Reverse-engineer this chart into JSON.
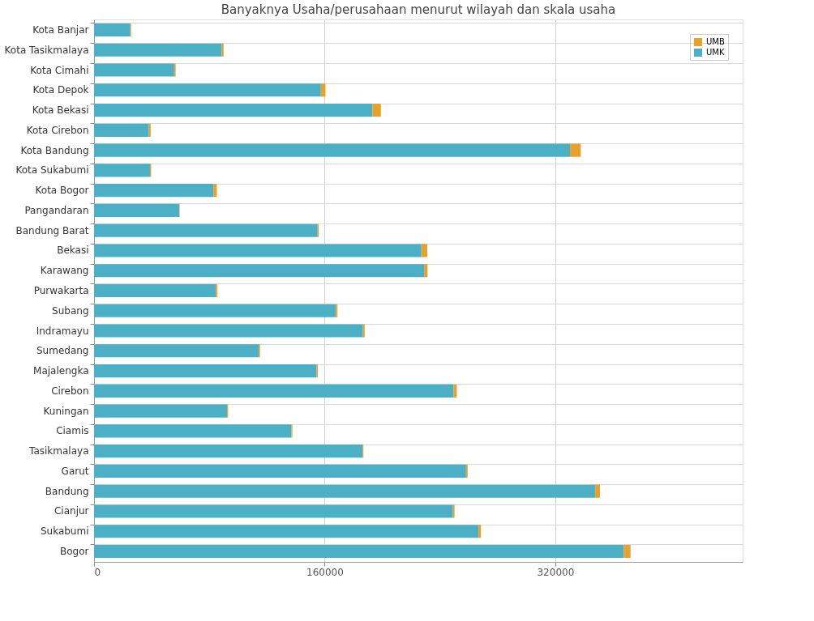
{
  "chart_data": {
    "type": "bar",
    "orientation": "horizontal",
    "stacked": true,
    "title": "Banyaknya Usaha/perusahaan menurut wilayah dan skala usaha",
    "categories": [
      "Kota Banjar",
      "Kota Tasikmalaya",
      "Kota Cimahi",
      "Kota Depok",
      "Kota Bekasi",
      "Kota Cirebon",
      "Kota Bandung",
      "Kota Sukabumi",
      "Kota Bogor",
      "Pangandaran",
      "Bandung Barat",
      "Bekasi",
      "Karawang",
      "Purwakarta",
      "Subang",
      "Indramayu",
      "Sumedang",
      "Majalengka",
      "Cirebon",
      "Kuningan",
      "Ciamis",
      "Tasikmalaya",
      "Garut",
      "Bandung",
      "Cianjur",
      "Sukabumi",
      "Bogor"
    ],
    "series": [
      {
        "name": "UMK",
        "color": "#4bb0c6",
        "values": [
          25200,
          88600,
          55600,
          157400,
          193200,
          38000,
          330200,
          38800,
          82800,
          59100,
          155100,
          227100,
          229000,
          84500,
          167800,
          186500,
          114300,
          154400,
          249500,
          92300,
          137000,
          186300,
          258100,
          347600,
          249000,
          266700,
          367500
        ]
      },
      {
        "name": "UMB",
        "color": "#e8a12a",
        "values": [
          500,
          1300,
          1000,
          3200,
          5800,
          1300,
          7500,
          800,
          2400,
          300,
          800,
          4100,
          2400,
          1100,
          1100,
          1300,
          900,
          900,
          2200,
          700,
          600,
          600,
          1100,
          3400,
          1100,
          1700,
          4700
        ]
      }
    ],
    "xlim": [
      0,
      450000
    ],
    "xticks": [
      0,
      160000,
      320000
    ],
    "grid": true,
    "legend": "top right"
  }
}
